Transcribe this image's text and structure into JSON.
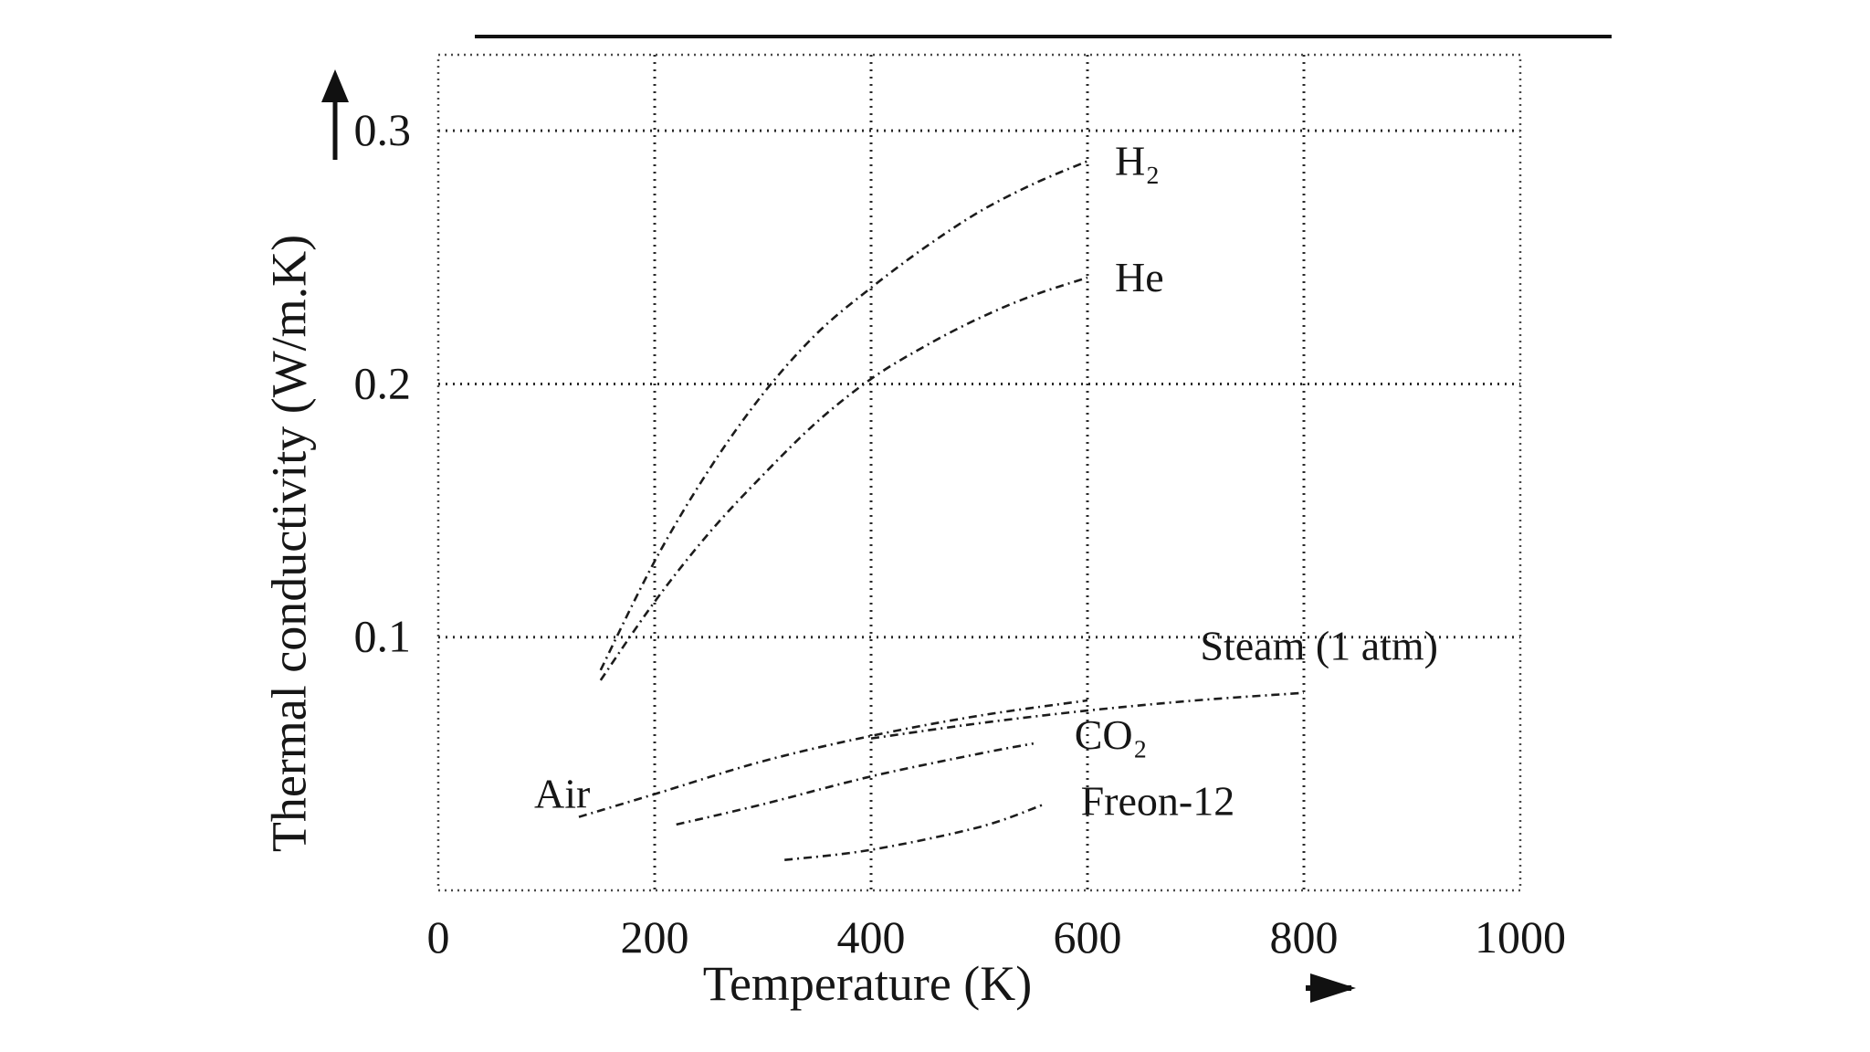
{
  "chart_data": {
    "type": "line",
    "xlabel": "Temperature  (K)",
    "ylabel": "Thermal conductivity (W/m.K)",
    "xlim": [
      0,
      1000
    ],
    "ylim": [
      0,
      0.33
    ],
    "xticks": [
      0,
      200,
      400,
      600,
      800,
      1000
    ],
    "yticks": [
      0.1,
      0.2,
      0.3
    ],
    "x_tick_labels": [
      "0",
      "200",
      "400",
      "600",
      "800",
      "1000"
    ],
    "y_tick_labels": [
      "0.1",
      "0.2",
      "0.3"
    ],
    "grid": true,
    "legend": "labels placed at curve ends",
    "series": [
      {
        "name": "H₂",
        "x": [
          150,
          200,
          250,
          300,
          350,
          400,
          450,
          500,
          550,
          600
        ],
        "y": [
          0.087,
          0.13,
          0.166,
          0.196,
          0.22,
          0.238,
          0.254,
          0.268,
          0.279,
          0.288
        ]
      },
      {
        "name": "He",
        "x": [
          150,
          200,
          250,
          300,
          350,
          400,
          450,
          500,
          550,
          600
        ],
        "y": [
          0.083,
          0.114,
          0.141,
          0.164,
          0.185,
          0.202,
          0.215,
          0.226,
          0.235,
          0.242
        ]
      },
      {
        "name": "Steam (1 atm)",
        "x": [
          400,
          500,
          600,
          700,
          800
        ],
        "y": [
          0.06,
          0.066,
          0.071,
          0.075,
          0.078
        ]
      },
      {
        "name": "Air",
        "x": [
          130,
          200,
          300,
          400,
          500,
          600
        ],
        "y": [
          0.029,
          0.038,
          0.051,
          0.061,
          0.069,
          0.075
        ]
      },
      {
        "name": "CO₂",
        "x": [
          220,
          300,
          400,
          500,
          550
        ],
        "y": [
          0.026,
          0.034,
          0.045,
          0.054,
          0.058
        ]
      },
      {
        "name": "Freon-12",
        "x": [
          320,
          400,
          500,
          560
        ],
        "y": [
          0.012,
          0.016,
          0.025,
          0.034
        ]
      }
    ]
  }
}
